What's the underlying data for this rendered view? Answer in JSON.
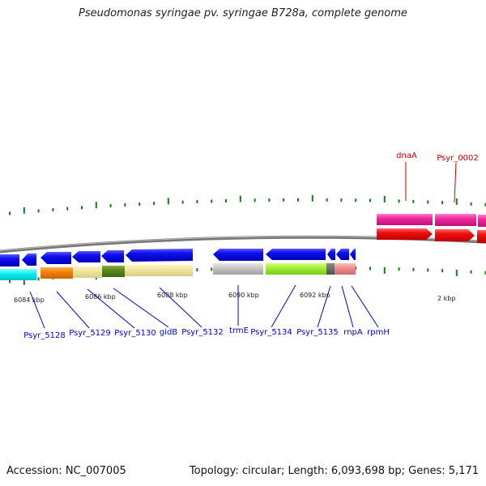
{
  "title": "Pseudomonas syringae pv. syringae B728a, complete genome",
  "footer": {
    "accession": "Accession: NC_007005",
    "topology": "Topology: circular; Length: 6,093,698 bp; Genes: 5,171"
  },
  "scale_labels": [
    "6084 kbp",
    "6086 kbp",
    "6088 kbp",
    "6090 kbp",
    "6092 kbp",
    "2 kbp"
  ],
  "reverse_genes": [
    "Psyr_5128",
    "Psyr_5129",
    "Psyr_5130",
    "gidB",
    "Psyr_5132",
    "trmE",
    "Psyr_5134",
    "Psyr_5135",
    "rnpA",
    "rpmH"
  ],
  "forward_genes": [
    "dnaA",
    "Psyr_0002"
  ],
  "colors": {
    "reverse_gene": "#0a0af5",
    "forward_gene": "#ee1111",
    "backbone": "#888888",
    "tick": "#1a7a1a",
    "label_reverse": "#0000cc",
    "label_forward": "#cc0000"
  }
}
